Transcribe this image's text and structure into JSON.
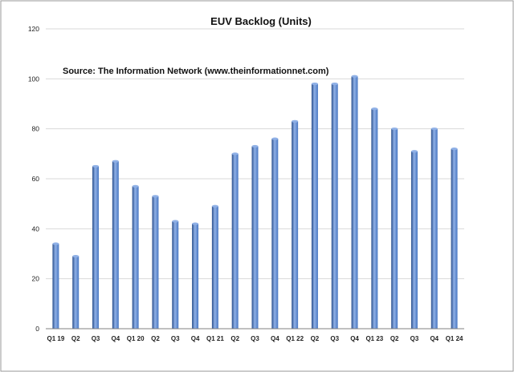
{
  "chart_data": {
    "type": "bar",
    "title": "EUV Backlog (Units)",
    "annotation": "Source: The Information Network (www.theinformationnet.com)",
    "xlabel": "",
    "ylabel": "",
    "categories": [
      "Q1 19",
      "Q2",
      "Q3",
      "Q4",
      "Q1 20",
      "Q2",
      "Q3",
      "Q4",
      "Q1 21",
      "Q2",
      "Q3",
      "Q4",
      "Q1 22",
      "Q2",
      "Q3",
      "Q4",
      "Q1 23",
      "Q2",
      "Q3",
      "Q4",
      "Q1 24"
    ],
    "values": [
      34,
      29,
      65,
      67,
      57,
      53,
      43,
      42,
      49,
      70,
      73,
      76,
      83,
      98,
      98,
      101,
      88,
      80,
      71,
      80,
      72
    ],
    "ylim": [
      0,
      120
    ],
    "yticks": [
      0,
      20,
      40,
      60,
      80,
      100,
      120
    ],
    "grid": true,
    "legend": "none",
    "colors": {
      "bar_dark": "#2a4f8c",
      "bar_mid": "#4a78c2",
      "bar_light": "#8fb0e6",
      "grid": "#d9d9d9",
      "axis": "#808080",
      "frame": "#9a9a9a"
    }
  }
}
